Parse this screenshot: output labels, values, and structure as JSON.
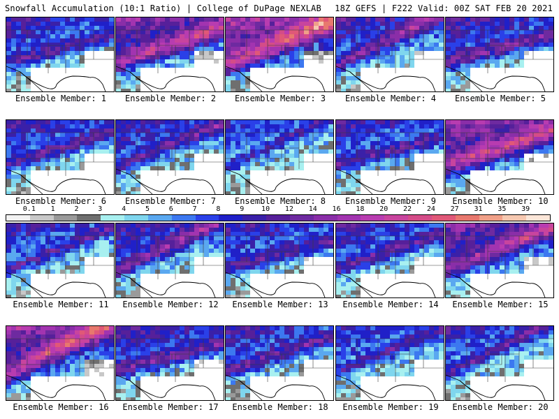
{
  "header": {
    "left_title": "Snowfall Accumulation (10:1 Ratio) | College of DuPage NEXLAB",
    "right_title": "18Z GEFS | F222 Valid: 00Z SAT FEB 20 2021"
  },
  "members": [
    {
      "label": "Ensemble Member: 1",
      "intensity": 0.55
    },
    {
      "label": "Ensemble Member: 2",
      "intensity": 0.75
    },
    {
      "label": "Ensemble Member: 3",
      "intensity": 0.85
    },
    {
      "label": "Ensemble Member: 4",
      "intensity": 0.6
    },
    {
      "label": "Ensemble Member: 5",
      "intensity": 0.6
    },
    {
      "label": "Ensemble Member: 6",
      "intensity": 0.55
    },
    {
      "label": "Ensemble Member: 7",
      "intensity": 0.55
    },
    {
      "label": "Ensemble Member: 8",
      "intensity": 0.45
    },
    {
      "label": "Ensemble Member: 9",
      "intensity": 0.55
    },
    {
      "label": "Ensemble Member: 10",
      "intensity": 0.8
    },
    {
      "label": "Ensemble Member: 11",
      "intensity": 0.5
    },
    {
      "label": "Ensemble Member: 12",
      "intensity": 0.6
    },
    {
      "label": "Ensemble Member: 13",
      "intensity": 0.55
    },
    {
      "label": "Ensemble Member: 14",
      "intensity": 0.55
    },
    {
      "label": "Ensemble Member: 15",
      "intensity": 0.7
    },
    {
      "label": "Ensemble Member: 16",
      "intensity": 0.8
    },
    {
      "label": "Ensemble Member: 17",
      "intensity": 0.6
    },
    {
      "label": "Ensemble Member: 18",
      "intensity": 0.55
    },
    {
      "label": "Ensemble Member: 19",
      "intensity": 0.5
    },
    {
      "label": "Ensemble Member: 20",
      "intensity": 0.5
    }
  ],
  "colorbar": {
    "labels": [
      "0.1",
      "1",
      "2",
      "3",
      "4",
      "5",
      "6",
      "7",
      "8",
      "9",
      "10",
      "12",
      "14",
      "16",
      "18",
      "20",
      "22",
      "24",
      "27",
      "31",
      "35",
      "39"
    ],
    "colors": [
      "#f2f2f2",
      "#c8c8c8",
      "#9a9a9a",
      "#6f6f6f",
      "#a8f0f0",
      "#7fd6ee",
      "#5aa8f0",
      "#3c78f0",
      "#2a40e8",
      "#2020c8",
      "#3a20a8",
      "#56209a",
      "#6e2aa0",
      "#8a2ea8",
      "#a234b0",
      "#b83cb0",
      "#c8449e",
      "#d44c88",
      "#e05878",
      "#e8786e",
      "#f0a088",
      "#f6c8b0",
      "#fbe6d8"
    ]
  }
}
